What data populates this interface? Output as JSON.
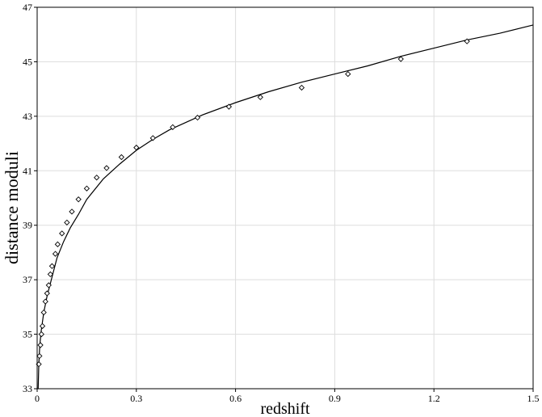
{
  "chart_data": {
    "type": "scatter",
    "title": "",
    "xlabel": "redshift",
    "ylabel": "distance moduli",
    "xlim": [
      0,
      1.5
    ],
    "ylim": [
      33,
      47
    ],
    "xticks": [
      0,
      0.3,
      0.6,
      0.9,
      1.2,
      1.5
    ],
    "xtick_labels": [
      "0",
      "0.3",
      "0.6",
      "0.9",
      "1.2",
      "1.5"
    ],
    "yticks": [
      33,
      35,
      37,
      39,
      41,
      43,
      45,
      47
    ],
    "ytick_labels": [
      "33",
      "35",
      "37",
      "39",
      "41",
      "43",
      "45",
      "47"
    ],
    "grid": true,
    "legend": "none",
    "series": [
      {
        "kind": "points",
        "marker": "diamond",
        "x": [
          0.005,
          0.007,
          0.01,
          0.013,
          0.016,
          0.02,
          0.025,
          0.03,
          0.035,
          0.04,
          0.045,
          0.055,
          0.062,
          0.075,
          0.09,
          0.105,
          0.125,
          0.15,
          0.18,
          0.21,
          0.255,
          0.3,
          0.35,
          0.41,
          0.485,
          0.58,
          0.675,
          0.8,
          0.94,
          1.1,
          1.3
        ],
        "y": [
          33.9,
          34.2,
          34.6,
          35.0,
          35.3,
          35.8,
          36.2,
          36.5,
          36.8,
          37.2,
          37.5,
          37.95,
          38.3,
          38.7,
          39.1,
          39.5,
          39.95,
          40.35,
          40.75,
          41.1,
          41.5,
          41.85,
          42.2,
          42.6,
          42.95,
          43.35,
          43.7,
          44.05,
          44.55,
          45.1,
          45.75
        ]
      },
      {
        "kind": "curve",
        "model": "distance modulus fit",
        "x": [
          0.003,
          0.005,
          0.008,
          0.012,
          0.02,
          0.03,
          0.045,
          0.06,
          0.08,
          0.1,
          0.125,
          0.15,
          0.2,
          0.25,
          0.3,
          0.35,
          0.4,
          0.5,
          0.6,
          0.7,
          0.8,
          0.9,
          1.0,
          1.1,
          1.2,
          1.3,
          1.4,
          1.5
        ],
        "y": [
          33.0,
          33.9,
          34.6,
          35.1,
          35.8,
          36.4,
          37.1,
          37.8,
          38.4,
          38.9,
          39.4,
          39.95,
          40.7,
          41.25,
          41.75,
          42.15,
          42.5,
          43.05,
          43.5,
          43.9,
          44.25,
          44.55,
          44.85,
          45.2,
          45.5,
          45.8,
          46.05,
          46.35
        ]
      }
    ]
  }
}
